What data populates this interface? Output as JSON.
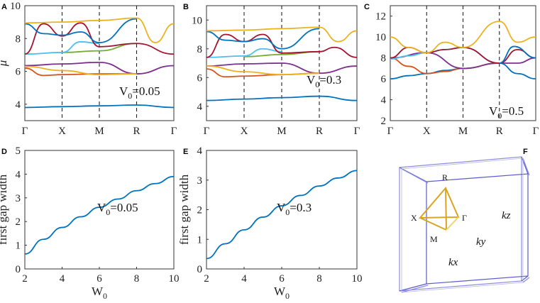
{
  "figure": {
    "colors": [
      "#0072BD",
      "#D95319",
      "#EDB120",
      "#7E2F8E",
      "#77AC30",
      "#4DBEEE",
      "#A2142F"
    ]
  },
  "panels": [
    {
      "letter": "A",
      "annotation": "V",
      "annotation_sub": "0",
      "annotation_val": "=0.05"
    },
    {
      "letter": "B",
      "annotation": "V",
      "annotation_sub": "0",
      "annotation_val": "=0.3"
    },
    {
      "letter": "C",
      "annotation": "V",
      "annotation_sub": "0",
      "annotation_val": "=0.5"
    },
    {
      "letter": "D",
      "annotation": "V",
      "annotation_sub": "0",
      "annotation_val": "=0.05"
    },
    {
      "letter": "E",
      "annotation": "V",
      "annotation_sub": "0",
      "annotation_val": "=0.3"
    },
    {
      "letter": "F"
    }
  ],
  "brillouin_zone": {
    "points": [
      "R",
      "X",
      "Γ",
      "M"
    ],
    "axes": [
      "kz",
      "ky",
      "kx"
    ],
    "edge_color": "#5A5AD0",
    "path_color": "#D9A520"
  },
  "chart_data": [
    {
      "type": "line",
      "panel": "A",
      "xlabel": "",
      "ylabel": "μ",
      "xticks": [
        "Γ",
        "X",
        "M",
        "R",
        "Γ"
      ],
      "xlim": [
        0,
        4
      ],
      "ylim": [
        3,
        10
      ],
      "yticks": [
        4,
        6,
        8,
        10
      ],
      "series": [
        {
          "color": "#0072BD",
          "x": [
            0,
            1,
            2,
            3,
            4
          ],
          "y": [
            3.8,
            3.85,
            3.9,
            3.95,
            3.8
          ]
        },
        {
          "color": "#D95319",
          "x": [
            0,
            0.5,
            1,
            2,
            3
          ],
          "y": [
            6.2,
            5.75,
            5.8,
            5.85,
            5.85
          ]
        },
        {
          "color": "#7E2F8E",
          "x": [
            0,
            1,
            2,
            3,
            4
          ],
          "y": [
            6.35,
            6.45,
            6.55,
            5.85,
            6.35
          ]
        },
        {
          "color": "#EDB120",
          "x": [
            0,
            1,
            2,
            3
          ],
          "y": [
            6.3,
            6.05,
            5.8,
            5.85
          ]
        },
        {
          "color": "#77AC30",
          "x": [
            1,
            2,
            3
          ],
          "y": [
            7.15,
            7.25,
            7.7
          ]
        },
        {
          "color": "#4DBEEE",
          "x": [
            0,
            1,
            1.5,
            2
          ],
          "y": [
            7.05,
            7.15,
            7.8,
            7.7
          ]
        },
        {
          "color": "#A2142F",
          "x": [
            0,
            0.5,
            1,
            1.5,
            2,
            3,
            4
          ],
          "y": [
            7.05,
            8.9,
            8.15,
            8.95,
            7.5,
            7.7,
            7.05
          ]
        },
        {
          "color": "#0072BD",
          "x": [
            0,
            0.5,
            1,
            1.5,
            2,
            3
          ],
          "y": [
            8.9,
            8.3,
            8.2,
            8.4,
            7.75,
            9.2
          ]
        },
        {
          "color": "#EDB120",
          "x": [
            0,
            1,
            2,
            3,
            3.5,
            4
          ],
          "y": [
            8.95,
            9.0,
            9.1,
            9.25,
            7.75,
            8.9
          ]
        }
      ]
    },
    {
      "type": "line",
      "panel": "B",
      "xlabel": "",
      "ylabel": "",
      "xticks": [
        "Γ",
        "X",
        "M",
        "R",
        "Γ"
      ],
      "xlim": [
        0,
        4
      ],
      "ylim": [
        3,
        11
      ],
      "yticks": [
        4,
        6,
        8,
        10
      ],
      "series": [
        {
          "color": "#0072BD",
          "x": [
            0,
            1,
            2,
            3,
            4
          ],
          "y": [
            4.4,
            4.5,
            4.6,
            4.7,
            4.4
          ]
        },
        {
          "color": "#D95319",
          "x": [
            0,
            0.5,
            1,
            2,
            3
          ],
          "y": [
            6.6,
            6.05,
            6.1,
            6.2,
            6.3
          ]
        },
        {
          "color": "#7E2F8E",
          "x": [
            0,
            1,
            2,
            3,
            4
          ],
          "y": [
            6.8,
            6.95,
            7.0,
            6.3,
            6.8
          ]
        },
        {
          "color": "#EDB120",
          "x": [
            0,
            1,
            2,
            3
          ],
          "y": [
            6.8,
            6.4,
            6.2,
            6.3
          ]
        },
        {
          "color": "#77AC30",
          "x": [
            1,
            2,
            3
          ],
          "y": [
            7.45,
            7.6,
            7.8
          ]
        },
        {
          "color": "#4DBEEE",
          "x": [
            0,
            1,
            1.5,
            2
          ],
          "y": [
            7.4,
            7.5,
            8.0,
            7.8
          ]
        },
        {
          "color": "#A2142F",
          "x": [
            0,
            0.5,
            1,
            1.5,
            2,
            3,
            3.4,
            4
          ],
          "y": [
            7.4,
            9.0,
            8.5,
            9.0,
            7.7,
            7.8,
            8.1,
            7.4
          ]
        },
        {
          "color": "#0072BD",
          "x": [
            0,
            0.5,
            1,
            1.5,
            2,
            3
          ],
          "y": [
            9.2,
            8.6,
            8.5,
            8.7,
            8.0,
            9.4
          ]
        },
        {
          "color": "#EDB120",
          "x": [
            0,
            1,
            2,
            3,
            3.5,
            4
          ],
          "y": [
            9.25,
            9.3,
            9.4,
            9.5,
            8.5,
            9.25
          ]
        }
      ]
    },
    {
      "type": "line",
      "panel": "C",
      "xlabel": "",
      "ylabel": "",
      "xticks": [
        "Γ",
        "X",
        "M",
        "R",
        "Γ"
      ],
      "xlim": [
        0,
        4
      ],
      "ylim": [
        2,
        13
      ],
      "yticks": [
        2,
        4,
        6,
        8,
        10,
        12
      ],
      "series": [
        {
          "color": "#0072BD",
          "x": [
            0,
            0.5,
            1,
            1.5,
            2,
            3,
            3.5,
            4
          ],
          "y": [
            6.0,
            6.3,
            6.5,
            6.8,
            7.0,
            7.5,
            6.5,
            6.0
          ]
        },
        {
          "color": "#D95319",
          "x": [
            0,
            0.5,
            1,
            1.5,
            2,
            3
          ],
          "y": [
            8.0,
            7.2,
            6.5,
            6.7,
            7.0,
            7.5
          ]
        },
        {
          "color": "#7E2F8E",
          "x": [
            0,
            1,
            2,
            3,
            3.5,
            4
          ],
          "y": [
            8.0,
            8.5,
            7.0,
            7.5,
            7.5,
            8.0
          ]
        },
        {
          "color": "#4DBEEE",
          "x": [
            0,
            0.5,
            1,
            1.5,
            2,
            3
          ],
          "y": [
            7.9,
            8.2,
            8.5,
            8.8,
            9.0,
            7.5
          ]
        },
        {
          "color": "#A2142F",
          "x": [
            0,
            0.5,
            1,
            1.5,
            2,
            3,
            3.5,
            4
          ],
          "y": [
            8.0,
            9.0,
            8.5,
            8.8,
            9.0,
            7.5,
            8.8,
            8.0
          ]
        },
        {
          "color": "#EDB120",
          "x": [
            0,
            0.5,
            1,
            1.5,
            2,
            3,
            3.5,
            4
          ],
          "y": [
            10.0,
            9.0,
            8.5,
            9.5,
            9.0,
            11.5,
            9.5,
            10.0
          ]
        },
        {
          "color": "#0072BD",
          "x": [
            3,
            3.4,
            4
          ],
          "y": [
            7.5,
            9.1,
            8.0
          ]
        }
      ]
    },
    {
      "type": "line",
      "panel": "D",
      "xlabel": "W",
      "xlabel_sub": "0",
      "ylabel": "first gap width",
      "xlim": [
        2,
        10
      ],
      "ylim": [
        0,
        5
      ],
      "xticks": [
        2,
        4,
        6,
        8,
        10
      ],
      "yticks": [
        0,
        1,
        2,
        3,
        4,
        5
      ],
      "series": [
        {
          "color": "#0072BD",
          "x": [
            2,
            3,
            4,
            5,
            6,
            7,
            8,
            9,
            10
          ],
          "y": [
            0.63,
            1.25,
            1.75,
            2.2,
            2.6,
            2.95,
            3.3,
            3.6,
            3.9
          ]
        }
      ]
    },
    {
      "type": "line",
      "panel": "E",
      "xlabel": "W",
      "xlabel_sub": "0",
      "ylabel": "first gap width",
      "xlim": [
        2,
        10
      ],
      "ylim": [
        0,
        4
      ],
      "xticks": [
        2,
        4,
        6,
        8,
        10
      ],
      "yticks": [
        0,
        1,
        2,
        3,
        4
      ],
      "series": [
        {
          "color": "#0072BD",
          "x": [
            2,
            3,
            4,
            5,
            6,
            7,
            8,
            9,
            10
          ],
          "y": [
            0.35,
            0.85,
            1.32,
            1.75,
            2.13,
            2.48,
            2.8,
            3.07,
            3.32
          ]
        }
      ]
    }
  ]
}
